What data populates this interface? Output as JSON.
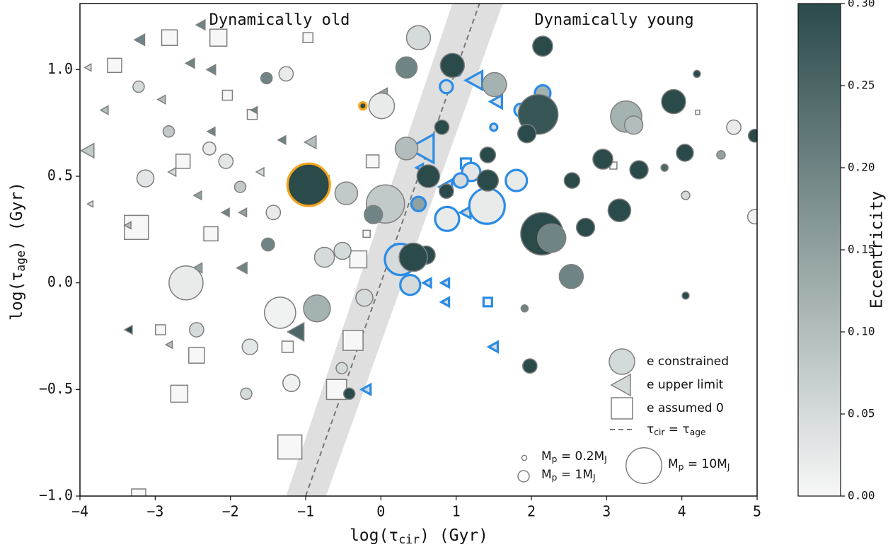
{
  "chart_data": {
    "type": "scatter",
    "xlabel": [
      "log(τ",
      "cir",
      ") (Gyr)"
    ],
    "ylabel": [
      "log(τ",
      "age",
      ") (Gyr)"
    ],
    "annotations": [
      "Dynamically old",
      "Dynamically young"
    ],
    "xlim": [
      -4,
      5
    ],
    "ylim": [
      -1.0,
      1.31
    ],
    "xticks": [
      {
        "value": -4,
        "label": "−4"
      },
      {
        "value": -3,
        "label": "−3"
      },
      {
        "value": -2,
        "label": "−2"
      },
      {
        "value": -1,
        "label": "−1"
      },
      0,
      1,
      2,
      3,
      4,
      5
    ],
    "yticks": [
      {
        "value": -1.0,
        "label": "−1.0"
      },
      {
        "value": -0.5,
        "label": "−0.5"
      },
      {
        "value": 0,
        "label": "0.0"
      },
      {
        "value": 0.5,
        "label": "0.5"
      },
      {
        "value": 1.0,
        "label": "1.0"
      }
    ],
    "colormap": [
      "#f7f7f7",
      "#2b4a4a"
    ],
    "colorbar": {
      "label": "Eccentricity",
      "lim": [
        0,
        0.3
      ],
      "ticks": [
        {
          "value": 0,
          "label": "0.00"
        },
        {
          "value": 0.05,
          "label": "0.05"
        },
        {
          "value": 0.1,
          "label": "0.10"
        },
        {
          "value": 0.15,
          "label": "0.15"
        },
        {
          "value": 0.2,
          "label": "0.20"
        },
        {
          "value": 0.25,
          "label": "0.25"
        },
        {
          "value": 0.3,
          "label": "0.30"
        }
      ]
    },
    "reference_line": {
      "name": [
        "τ",
        "cir",
        " = τ",
        "age"
      ],
      "color": "#777777",
      "x": [
        -1.0,
        1.31
      ],
      "y": [
        -1.0,
        1.31
      ]
    },
    "shaded_region": {
      "color": "#d9d9d9",
      "x": [
        -1.26,
        0.95,
        1.62,
        -0.73
      ],
      "y": [
        -1.0,
        1.31,
        1.31,
        -1.0
      ]
    },
    "series": [
      {
        "name": "e assumed 0",
        "marker": "square",
        "x": [
          1.42,
          1.13,
          -2.81,
          -3.54,
          -3.25,
          -2.68,
          -2.45,
          -2.26,
          -2.93,
          -1.24,
          -0.37,
          -0.59,
          -1.21,
          -3.22,
          -0.3,
          -0.11,
          -2.16,
          -2.63,
          -0.97,
          -2.04,
          4.21,
          3.09,
          -0.19,
          -1.71
        ],
        "y": [
          -0.09,
          0.56,
          1.15,
          1.02,
          0.26,
          -0.52,
          -0.34,
          0.23,
          -0.22,
          -0.3,
          -0.27,
          -0.5,
          -0.77,
          -1.0,
          0.11,
          0.57,
          1.15,
          0.57,
          1.15,
          0.88,
          0.8,
          0.55,
          0.23,
          0.79
        ],
        "mass": [
          0.56,
          0.77,
          1.9,
          1.56,
          4.5,
          2.25,
          1.9,
          1.56,
          0.77,
          1,
          3.1,
          3.1,
          4.5,
          1.56,
          2.25,
          1.27,
          2.25,
          1.56,
          0.77,
          0.77,
          0.14,
          0.39,
          0.39,
          0.77
        ],
        "ecc": [
          0,
          0,
          0,
          0,
          0,
          0,
          0,
          0,
          0,
          0,
          0,
          0,
          0,
          0,
          0,
          0,
          0,
          0,
          0,
          0,
          0,
          0,
          0,
          0
        ],
        "edge": [
          "#2b8ce6",
          "#2b8ce6",
          "#7f7f7f",
          "#7f7f7f",
          "#7f7f7f",
          "#7f7f7f",
          "#7f7f7f",
          "#7f7f7f",
          "#7f7f7f",
          "#7f7f7f",
          "#7f7f7f",
          "#7f7f7f",
          "#7f7f7f",
          "#7f7f7f",
          "#7f7f7f",
          "#7f7f7f",
          "#7f7f7f",
          "#7f7f7f",
          "#7f7f7f",
          "#7f7f7f",
          "#7f7f7f",
          "#7f7f7f",
          "#7f7f7f",
          "#7f7f7f"
        ]
      },
      {
        "name": "e upper limit",
        "marker": "triangle",
        "x": [
          0.55,
          1.25,
          1.54,
          0.87,
          1.13,
          0.62,
          0.86,
          0.86,
          1.5,
          -0.19,
          0.52,
          -3.89,
          -3.35,
          -3.2,
          -2.39,
          -2.77,
          -2.53,
          -2.25,
          -2.43,
          -1.83,
          -2.81,
          -3.67,
          -3.86,
          -3.89,
          -1.31,
          -1.12,
          -1.6,
          -2.06,
          -0.93,
          -0.74,
          -2.25,
          0.01,
          -2.43,
          -1.68,
          -2.91,
          -3.36,
          -1.84
        ],
        "y": [
          0.63,
          0.95,
          0.85,
          0.45,
          0.33,
          0.0,
          0.0,
          -0.09,
          -0.3,
          -0.5,
          0.54,
          0.62,
          -0.22,
          1.14,
          1.21,
          0.52,
          1.03,
          1.0,
          0.41,
          0.33,
          -0.29,
          0.81,
          0.37,
          1.01,
          0.67,
          -0.23,
          0.52,
          0.33,
          0.66,
          0.48,
          0.71,
          0.88,
          0.07,
          0.81,
          0.86,
          0.27,
          0.07
        ],
        "mass": [
          6.25,
          2.6,
          1.3,
          1.6,
          1,
          0.56,
          0.56,
          0.56,
          0.77,
          0.77,
          0.39,
          1.6,
          0.56,
          1,
          0.77,
          0.56,
          0.77,
          0.77,
          0.56,
          0.56,
          0.39,
          0.56,
          0.3,
          0.39,
          0.56,
          2.6,
          0.56,
          0.56,
          1.3,
          0.77,
          0.56,
          1.6,
          0.77,
          0.39,
          0.56,
          0.39,
          1
        ],
        "ecc": [
          0.05,
          0.05,
          0.03,
          0.05,
          0.05,
          0.05,
          0.05,
          0.05,
          0.05,
          0.05,
          0.05,
          0.08,
          0.3,
          0.2,
          0.2,
          0.05,
          0.2,
          0.2,
          0.15,
          0.15,
          0.1,
          0.1,
          0.05,
          0.05,
          0.2,
          0.25,
          0.05,
          0.2,
          0.1,
          0.05,
          0.2,
          0.15,
          0.15,
          0.2,
          0.1,
          0.1,
          0.2
        ],
        "edge": [
          "#2b8ce6",
          "#2b8ce6",
          "#2b8ce6",
          "#2b8ce6",
          "#2b8ce6",
          "#2b8ce6",
          "#2b8ce6",
          "#2b8ce6",
          "#2b8ce6",
          "#2b8ce6",
          "#2b8ce6",
          "#7f7f7f",
          "#7f7f7f",
          "#7f7f7f",
          "#7f7f7f",
          "#7f7f7f",
          "#7f7f7f",
          "#7f7f7f",
          "#7f7f7f",
          "#7f7f7f",
          "#7f7f7f",
          "#7f7f7f",
          "#7f7f7f",
          "#7f7f7f",
          "#7f7f7f",
          "#7f7f7f",
          "#7f7f7f",
          "#7f7f7f",
          "#7f7f7f",
          "#7f7f7f",
          "#7f7f7f",
          "#7f7f7f",
          "#7f7f7f",
          "#7f7f7f",
          "#7f7f7f",
          "#7f7f7f",
          "#7f7f7f"
        ]
      },
      {
        "name": "e constrained",
        "marker": "circle",
        "x": [
          -0.96,
          -0.24,
          0.26,
          0.39,
          1.41,
          0.88,
          1.2,
          1.8,
          1.06,
          2.15,
          1.86,
          0.87,
          1.01,
          1.5,
          0.5,
          0.95,
          2.15,
          2.09,
          3.89,
          3.26,
          3.36,
          2.95,
          3.43,
          4.04,
          3.17,
          2.14,
          2.27,
          2.72,
          2.53,
          1.94,
          2.54,
          0.63,
          0.6,
          0.43,
          1.42,
          1.42,
          0.81,
          1.98,
          4.97,
          0.34,
          0.5,
          1.51,
          0.87,
          -2.59,
          -1.34,
          -0.85,
          0.06,
          -0.1,
          0.01,
          0.34,
          -0.46,
          -0.75,
          -0.51,
          -1.19,
          -1.74,
          -3.13,
          -1.26,
          -1.43,
          -2.28,
          -0.22,
          4.97,
          4.69,
          -2.45,
          -3.22,
          -2.82,
          -1.79,
          -0.42,
          -0.52,
          -1.5,
          -1.52,
          -2.06,
          -1.87,
          4.05,
          4.2,
          4.52,
          3.77,
          4.05,
          1.91
        ],
        "y": [
          0.46,
          0.83,
          0.11,
          -0.01,
          0.36,
          0.3,
          0.52,
          0.48,
          0.48,
          0.89,
          0.81,
          0.92,
          0.99,
          0.73,
          0.37,
          1.02,
          1.11,
          0.79,
          0.85,
          0.78,
          0.74,
          0.58,
          0.53,
          0.61,
          0.34,
          0.23,
          0.21,
          0.26,
          0.03,
          0.7,
          0.48,
          0.5,
          0.13,
          0.12,
          0.6,
          0.48,
          0.73,
          -0.39,
          0.69,
          1.01,
          1.15,
          0.93,
          0.43,
          0.0,
          -0.14,
          -0.12,
          0.37,
          0.32,
          0.83,
          0.63,
          0.42,
          0.12,
          0.15,
          -0.47,
          -0.3,
          0.49,
          0.98,
          0.33,
          0.63,
          -0.07,
          0.31,
          0.73,
          -0.22,
          0.92,
          0.71,
          -0.52,
          -0.52,
          -0.4,
          0.18,
          0.96,
          0.57,
          0.45,
          0.41,
          0.98,
          0.6,
          0.54,
          -0.06,
          -0.12
        ],
        "mass": [
          14,
          0.4,
          7.6,
          3.1,
          9.8,
          4.5,
          2.6,
          3.5,
          1.6,
          1.9,
          1.3,
          1.3,
          0.56,
          0.39,
          1.6,
          4.5,
          3.1,
          12.3,
          4.5,
          7.6,
          2.6,
          3.1,
          2.6,
          2.25,
          4,
          14,
          6.25,
          2.6,
          4.5,
          2.6,
          1.9,
          4,
          2.6,
          6.25,
          1.9,
          3.5,
          1.6,
          1.6,
          1.3,
          3.5,
          4.5,
          4.5,
          1.6,
          9,
          7.6,
          5.6,
          11.4,
          2.6,
          5.1,
          4,
          4,
          3.1,
          2.25,
          2.25,
          1.9,
          2.25,
          1.6,
          1.6,
          1.3,
          2.25,
          1.6,
          1.6,
          1.6,
          1,
          1,
          1,
          1,
          1,
          1.3,
          1,
          1.6,
          1,
          0.56,
          0.39,
          0.56,
          0.39,
          0.39,
          0.39
        ],
        "ecc": [
          0.3,
          0.3,
          0.05,
          0.05,
          0.02,
          0.02,
          0.03,
          0.02,
          0.05,
          0.12,
          0.05,
          0.05,
          0.05,
          0.05,
          0.15,
          0.3,
          0.3,
          0.28,
          0.3,
          0.12,
          0.1,
          0.3,
          0.3,
          0.3,
          0.3,
          0.3,
          0.2,
          0.3,
          0.2,
          0.3,
          0.3,
          0.3,
          0.3,
          0.3,
          0.3,
          0.3,
          0.3,
          0.3,
          0.3,
          0.2,
          0.05,
          0.12,
          0.3,
          0.02,
          0.01,
          0.12,
          0.08,
          0.2,
          0.02,
          0.1,
          0.08,
          0.05,
          0.05,
          0.01,
          0.03,
          0.03,
          0.02,
          0.02,
          0.02,
          0.05,
          0.01,
          0.02,
          0.05,
          0.05,
          0.08,
          0.05,
          0.3,
          0.05,
          0.2,
          0.2,
          0.03,
          0.08,
          0.05,
          0.3,
          0.15,
          0.25,
          0.3,
          0.2
        ],
        "edge": [
          "#f5a31a",
          "#f5a31a",
          "#2b8ce6",
          "#2b8ce6",
          "#2b8ce6",
          "#2b8ce6",
          "#2b8ce6",
          "#2b8ce6",
          "#2b8ce6",
          "#2b8ce6",
          "#2b8ce6",
          "#2b8ce6",
          "#2b8ce6",
          "#2b8ce6",
          "#2b8ce6",
          "#7f7f7f",
          "#7f7f7f",
          "#7f7f7f",
          "#7f7f7f",
          "#7f7f7f",
          "#7f7f7f",
          "#7f7f7f",
          "#7f7f7f",
          "#7f7f7f",
          "#7f7f7f",
          "#7f7f7f",
          "#7f7f7f",
          "#7f7f7f",
          "#7f7f7f",
          "#7f7f7f",
          "#7f7f7f",
          "#7f7f7f",
          "#7f7f7f",
          "#7f7f7f",
          "#7f7f7f",
          "#7f7f7f",
          "#7f7f7f",
          "#7f7f7f",
          "#7f7f7f",
          "#7f7f7f",
          "#7f7f7f",
          "#7f7f7f",
          "#7f7f7f",
          "#7f7f7f",
          "#7f7f7f",
          "#7f7f7f",
          "#7f7f7f",
          "#7f7f7f",
          "#7f7f7f",
          "#7f7f7f",
          "#7f7f7f",
          "#7f7f7f",
          "#7f7f7f",
          "#7f7f7f",
          "#7f7f7f",
          "#7f7f7f",
          "#7f7f7f",
          "#7f7f7f",
          "#7f7f7f",
          "#7f7f7f",
          "#7f7f7f",
          "#7f7f7f",
          "#7f7f7f",
          "#7f7f7f",
          "#7f7f7f",
          "#7f7f7f",
          "#7f7f7f",
          "#7f7f7f",
          "#7f7f7f",
          "#7f7f7f",
          "#7f7f7f",
          "#7f7f7f",
          "#7f7f7f",
          "#7f7f7f",
          "#7f7f7f",
          "#7f7f7f",
          "#7f7f7f",
          "#7f7f7f"
        ]
      }
    ],
    "size_legend": [
      {
        "mass": 0.2,
        "label": [
          "M",
          "p",
          " = 0.2M",
          "J"
        ]
      },
      {
        "mass": 1,
        "label": [
          "M",
          "p",
          " = 1M",
          "J"
        ]
      },
      {
        "mass": 10,
        "label": [
          "M",
          "p",
          " = 10M",
          "J"
        ]
      }
    ]
  }
}
